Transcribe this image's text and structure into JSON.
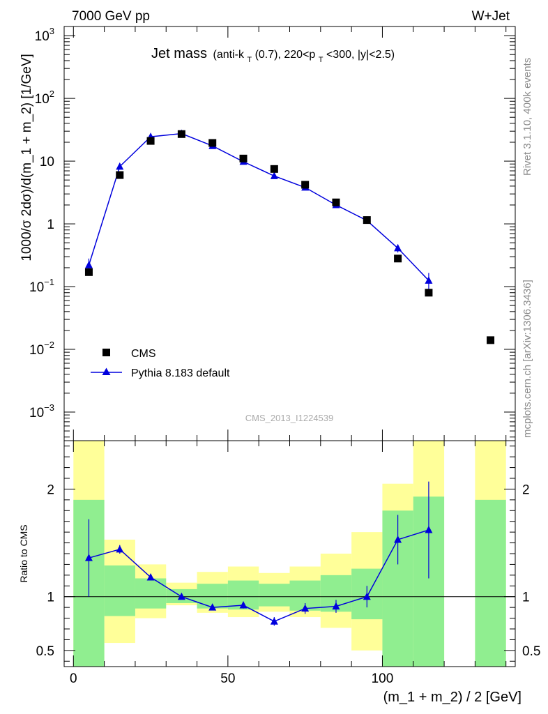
{
  "header": {
    "left": "7000 GeV pp",
    "right": "W+Jet"
  },
  "side": {
    "rivet": "Rivet 3.1.10,  400k events",
    "mcplots": "mcplots.cern.ch [arXiv:1306.3436]"
  },
  "title": {
    "main": "Jet mass",
    "s1": "(anti-k",
    "sub1": "T",
    "s2": "(0.7), 220<p",
    "sub2": "T",
    "s3": "<300, |y|<2.5)"
  },
  "watermark": "CMS_2013_I1224539",
  "axes": {
    "ylabel_top": "1000/σ 2dσ)/d(m_1 + m_2) [1/GeV]",
    "ylabel_bottom": "Ratio to CMS",
    "xlabel": "(m_1 + m_2) / 2 [GeV]",
    "top_ticks": [
      {
        "value": 1000,
        "base": "10",
        "exp": "3"
      },
      {
        "value": 100,
        "base": "10",
        "exp": "2"
      },
      {
        "value": 10,
        "base": "10",
        "exp": ""
      },
      {
        "value": 1,
        "base": "1",
        "exp": ""
      },
      {
        "value": 0.1,
        "base": "10",
        "exp": "−1"
      },
      {
        "value": 0.01,
        "base": "10",
        "exp": "−2"
      },
      {
        "value": 0.001,
        "base": "10",
        "exp": "−3"
      }
    ],
    "ratio_ticks": [
      {
        "value": 2,
        "label": "2"
      },
      {
        "value": 1,
        "label": "1"
      },
      {
        "value": 0.5,
        "label": "0.5"
      }
    ],
    "x_ticks": [
      {
        "value": 0,
        "label": "0"
      },
      {
        "value": 50,
        "label": "50"
      },
      {
        "value": 100,
        "label": "100"
      }
    ]
  },
  "legend": [
    {
      "key": "cms",
      "label": "CMS"
    },
    {
      "key": "pythia",
      "label": "Pythia 8.183 default"
    }
  ],
  "colors": {
    "mc": "#0000dd",
    "band_inner": "#90ee90",
    "band_outer": "#ffff99",
    "data": "#000000"
  },
  "chart_data": [
    {
      "type": "scatter",
      "panel": "main",
      "yscale": "log",
      "xlim": [
        -3,
        143
      ],
      "ylim": [
        0.00035,
        1400
      ],
      "series": [
        {
          "name": "CMS",
          "x": [
            5,
            15,
            25,
            35,
            45,
            55,
            65,
            75,
            85,
            95,
            105,
            115,
            135
          ],
          "y": [
            0.17,
            6.0,
            21.0,
            27.0,
            19.5,
            11.0,
            7.5,
            4.2,
            2.2,
            1.15,
            0.28,
            0.08,
            0.014
          ]
        },
        {
          "name": "Pythia 8.183 default",
          "x": [
            5,
            15,
            25,
            35,
            45,
            55,
            65,
            75,
            85,
            95,
            105,
            115
          ],
          "y": [
            0.22,
            8.2,
            24.5,
            27.5,
            17.5,
            9.8,
            5.8,
            3.8,
            2.0,
            1.13,
            0.41,
            0.125
          ],
          "yerr": [
            0.06,
            0.3,
            0.6,
            0.6,
            0.5,
            0.3,
            0.2,
            0.15,
            0.1,
            0.05,
            0.06,
            0.04
          ]
        }
      ]
    },
    {
      "type": "line",
      "panel": "ratio",
      "ylabel": "Ratio to CMS",
      "xlabel": "(m_1 + m_2) / 2 [GeV]",
      "xlim": [
        -3,
        143
      ],
      "ylim": [
        0.35,
        2.45
      ],
      "reference": 1,
      "bands": [
        {
          "x0": 0,
          "x1": 10,
          "inner": [
            0.35,
            1.9
          ],
          "outer": [
            0.35,
            2.45
          ]
        },
        {
          "x0": 10,
          "x1": 20,
          "inner": [
            0.82,
            1.29
          ],
          "outer": [
            0.57,
            1.53
          ]
        },
        {
          "x0": 20,
          "x1": 30,
          "inner": [
            0.89,
            1.17
          ],
          "outer": [
            0.8,
            1.3
          ]
        },
        {
          "x0": 30,
          "x1": 40,
          "inner": [
            0.94,
            1.07
          ],
          "outer": [
            0.92,
            1.13
          ]
        },
        {
          "x0": 40,
          "x1": 50,
          "inner": [
            0.89,
            1.12
          ],
          "outer": [
            0.85,
            1.23
          ]
        },
        {
          "x0": 50,
          "x1": 60,
          "inner": [
            0.88,
            1.15
          ],
          "outer": [
            0.81,
            1.28
          ]
        },
        {
          "x0": 60,
          "x1": 70,
          "inner": [
            0.91,
            1.12
          ],
          "outer": [
            0.86,
            1.22
          ]
        },
        {
          "x0": 70,
          "x1": 80,
          "inner": [
            0.87,
            1.15
          ],
          "outer": [
            0.81,
            1.28
          ]
        },
        {
          "x0": 80,
          "x1": 90,
          "inner": [
            0.86,
            1.2
          ],
          "outer": [
            0.71,
            1.4
          ]
        },
        {
          "x0": 90,
          "x1": 100,
          "inner": [
            0.79,
            1.26
          ],
          "outer": [
            0.5,
            1.6
          ]
        },
        {
          "x0": 100,
          "x1": 110,
          "inner": [
            0.35,
            1.8
          ],
          "outer": [
            0.35,
            2.05
          ]
        },
        {
          "x0": 110,
          "x1": 120,
          "inner": [
            0.35,
            1.93
          ],
          "outer": [
            0.35,
            2.45
          ]
        },
        {
          "x0": 130,
          "x1": 140,
          "inner": [
            0.35,
            1.9
          ],
          "outer": [
            0.35,
            2.45
          ]
        }
      ],
      "series": [
        {
          "name": "Pythia 8.183 default",
          "x": [
            5,
            15,
            25,
            35,
            45,
            55,
            65,
            75,
            85,
            95,
            105,
            115
          ],
          "y": [
            1.36,
            1.44,
            1.18,
            1.0,
            0.9,
            0.92,
            0.77,
            0.89,
            0.91,
            1.0,
            1.53,
            1.62
          ],
          "yerr": [
            0.36,
            0.04,
            0.02,
            0.02,
            0.02,
            0.03,
            0.04,
            0.05,
            0.06,
            0.1,
            0.23,
            0.45
          ]
        }
      ]
    }
  ]
}
